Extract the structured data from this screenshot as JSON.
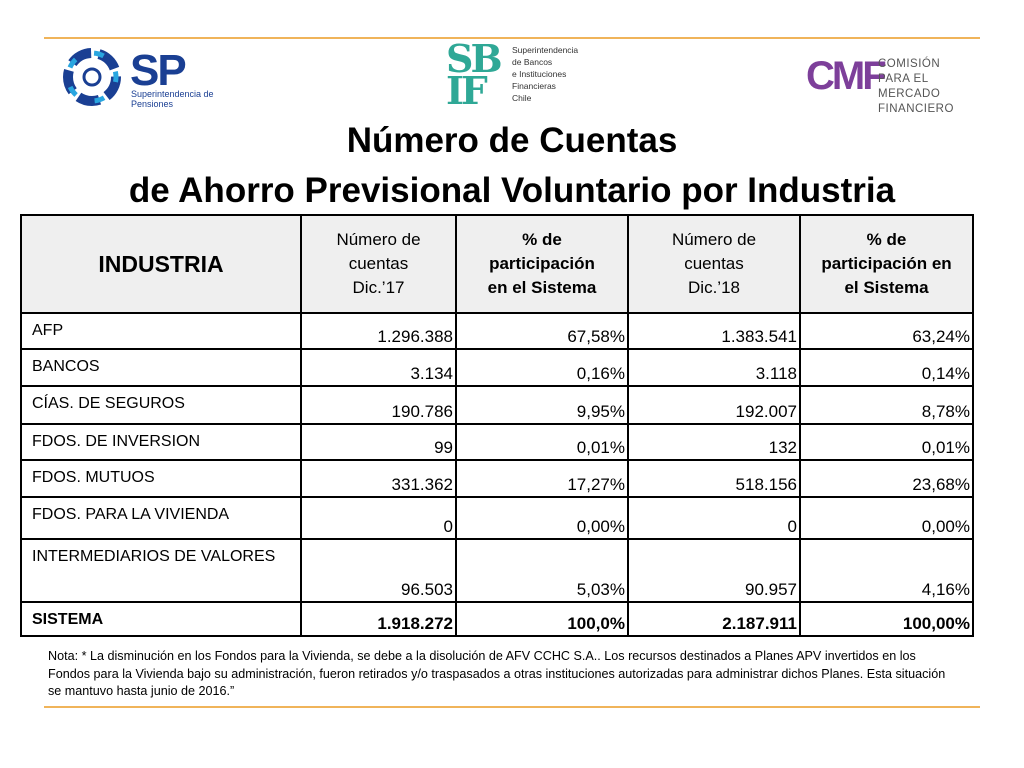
{
  "logos": {
    "sp": {
      "abbr": "SP",
      "text": "Superintendencia de Pensiones",
      "color": "#1a3f93"
    },
    "sbif": {
      "abbr": "SBIF",
      "lines": [
        "Superintendencia",
        "de Bancos",
        "e Instituciones",
        "Financieras",
        "Chile"
      ],
      "color": "#2fa896"
    },
    "cmf": {
      "abbr": "CMF",
      "lines": [
        "COMISIÓN",
        "PARA EL MERCADO",
        "FINANCIERO"
      ],
      "color": "#7d3f9a"
    }
  },
  "title": {
    "line1": "Número de Cuentas",
    "line2": "de Ahorro Previsional Voluntario por Industria"
  },
  "table": {
    "headers": {
      "industria": "INDUSTRIA",
      "col1": [
        "Número de",
        "cuentas",
        "Dic.’17"
      ],
      "col2": [
        "% de",
        "participación",
        "en el Sistema"
      ],
      "col3": [
        "Número de",
        "cuentas",
        "Dic.’18"
      ],
      "col4": [
        "% de",
        "participación en",
        "el Sistema"
      ]
    },
    "rows": [
      {
        "name": "AFP",
        "c1": "1.296.388",
        "c2": "67,58%",
        "c3": "1.383.541",
        "c4": "63,24%"
      },
      {
        "name": "BANCOS",
        "c1": "3.134",
        "c2": "0,16%",
        "c3": "3.118",
        "c4": "0,14%"
      },
      {
        "name": "CÍAS. DE SEGUROS",
        "c1": "190.786",
        "c2": "9,95%",
        "c3": "192.007",
        "c4": "8,78%"
      },
      {
        "name": "FDOS. DE INVERSION",
        "c1": "99",
        "c2": "0,01%",
        "c3": "132",
        "c4": "0,01%"
      },
      {
        "name": "FDOS. MUTUOS",
        "c1": "331.362",
        "c2": "17,27%",
        "c3": "518.156",
        "c4": "23,68%"
      },
      {
        "name": "FDOS. PARA LA VIVIENDA",
        "c1": "0",
        "c2": "0,00%",
        "c3": "0",
        "c4": "0,00%"
      },
      {
        "name": "INTERMEDIARIOS DE VALORES",
        "c1": "96.503",
        "c2": "5,03%",
        "c3": "90.957",
        "c4": "4,16%"
      }
    ],
    "total": {
      "name": "SISTEMA",
      "c1": "1.918.272",
      "c2": "100,0%",
      "c3": "2.187.911",
      "c4": "100,00%"
    }
  },
  "note": "Nota: * La disminución en los Fondos para la Vivienda, se debe a la disolución de AFV CCHC S.A.. Los recursos destinados a Planes APV invertidos en los Fondos para la Vivienda bajo su administración, fueron retirados y/o traspasados a otras instituciones autorizadas para administrar dichos Planes. Esta situación se mantuvo hasta junio de 2016.”"
}
